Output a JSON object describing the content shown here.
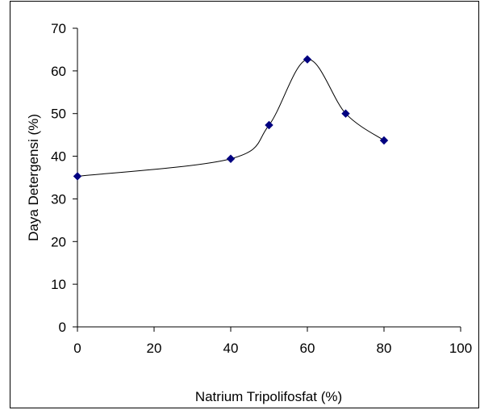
{
  "chart_data": {
    "type": "line",
    "title": "",
    "xlabel": "Natrium Tripolifosfat (%)",
    "ylabel": "Daya Detergensi (%)",
    "xlim": [
      0,
      100
    ],
    "ylim": [
      0,
      70
    ],
    "xticks": [
      0,
      20,
      40,
      60,
      80,
      100
    ],
    "yticks": [
      0,
      10,
      20,
      30,
      40,
      50,
      60,
      70
    ],
    "grid": false,
    "smooth": true,
    "series": [
      {
        "marker": "diamond",
        "color": "#000080",
        "line_color": "#000000",
        "x": [
          0,
          40,
          50,
          60,
          70,
          80
        ],
        "y": [
          35.3,
          39.4,
          47.3,
          62.7,
          50.0,
          43.7
        ]
      }
    ]
  }
}
